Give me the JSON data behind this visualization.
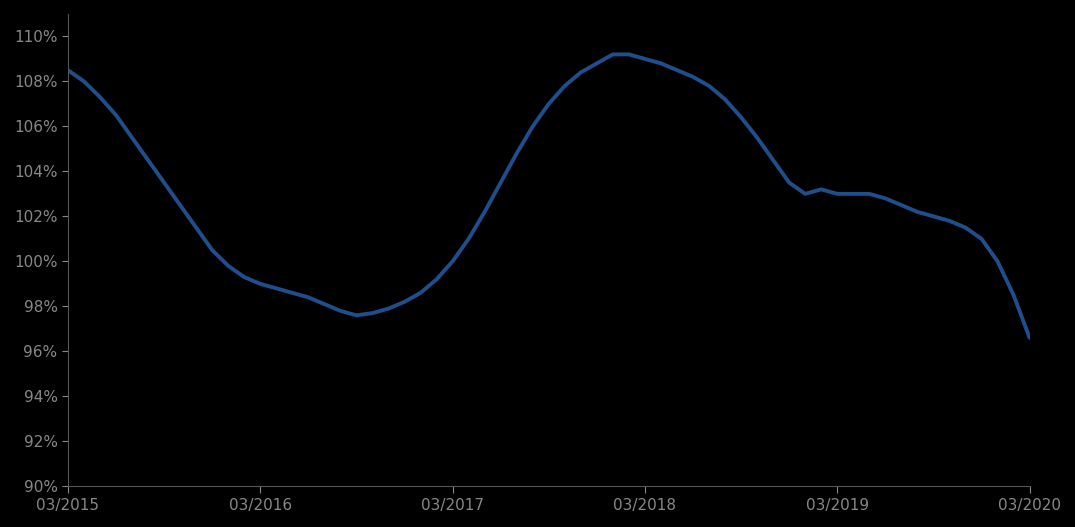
{
  "background_color": "#000000",
  "line_color": "#1f4e8c",
  "line_width": 2.8,
  "x_labels": [
    "03/2015",
    "03/2016",
    "03/2017",
    "03/2018",
    "03/2019",
    "03/2020"
  ],
  "x_values": [
    0,
    12,
    24,
    36,
    48,
    60
  ],
  "data_points": [
    [
      0,
      108.5
    ],
    [
      1,
      108.0
    ],
    [
      2,
      107.3
    ],
    [
      3,
      106.5
    ],
    [
      4,
      105.5
    ],
    [
      5,
      104.5
    ],
    [
      6,
      103.5
    ],
    [
      7,
      102.5
    ],
    [
      8,
      101.5
    ],
    [
      9,
      100.5
    ],
    [
      10,
      99.8
    ],
    [
      11,
      99.3
    ],
    [
      12,
      99.0
    ],
    [
      13,
      98.8
    ],
    [
      14,
      98.6
    ],
    [
      15,
      98.4
    ],
    [
      16,
      98.1
    ],
    [
      17,
      97.8
    ],
    [
      18,
      97.6
    ],
    [
      19,
      97.7
    ],
    [
      20,
      97.9
    ],
    [
      21,
      98.2
    ],
    [
      22,
      98.6
    ],
    [
      23,
      99.2
    ],
    [
      24,
      100.0
    ],
    [
      25,
      101.0
    ],
    [
      26,
      102.2
    ],
    [
      27,
      103.5
    ],
    [
      28,
      104.8
    ],
    [
      29,
      106.0
    ],
    [
      30,
      107.0
    ],
    [
      31,
      107.8
    ],
    [
      32,
      108.4
    ],
    [
      33,
      108.8
    ],
    [
      34,
      109.2
    ],
    [
      35,
      109.2
    ],
    [
      36,
      109.0
    ],
    [
      37,
      108.8
    ],
    [
      38,
      108.5
    ],
    [
      39,
      108.2
    ],
    [
      40,
      107.8
    ],
    [
      41,
      107.2
    ],
    [
      42,
      106.4
    ],
    [
      43,
      105.5
    ],
    [
      44,
      104.5
    ],
    [
      45,
      103.5
    ],
    [
      46,
      103.0
    ],
    [
      47,
      103.2
    ],
    [
      48,
      103.0
    ],
    [
      49,
      103.0
    ],
    [
      50,
      103.0
    ],
    [
      51,
      102.8
    ],
    [
      52,
      102.5
    ],
    [
      53,
      102.2
    ],
    [
      54,
      102.0
    ],
    [
      55,
      101.8
    ],
    [
      56,
      101.5
    ],
    [
      57,
      101.0
    ],
    [
      58,
      100.0
    ],
    [
      59,
      98.5
    ],
    [
      60,
      96.6
    ]
  ],
  "ylim": [
    90,
    111
  ],
  "yticks": [
    90,
    92,
    94,
    96,
    98,
    100,
    102,
    104,
    106,
    108,
    110
  ],
  "tick_color": "#888888",
  "text_color": "#888888",
  "spine_color": "#555555",
  "fontsize_ticks": 11,
  "grid_color": "#000000"
}
